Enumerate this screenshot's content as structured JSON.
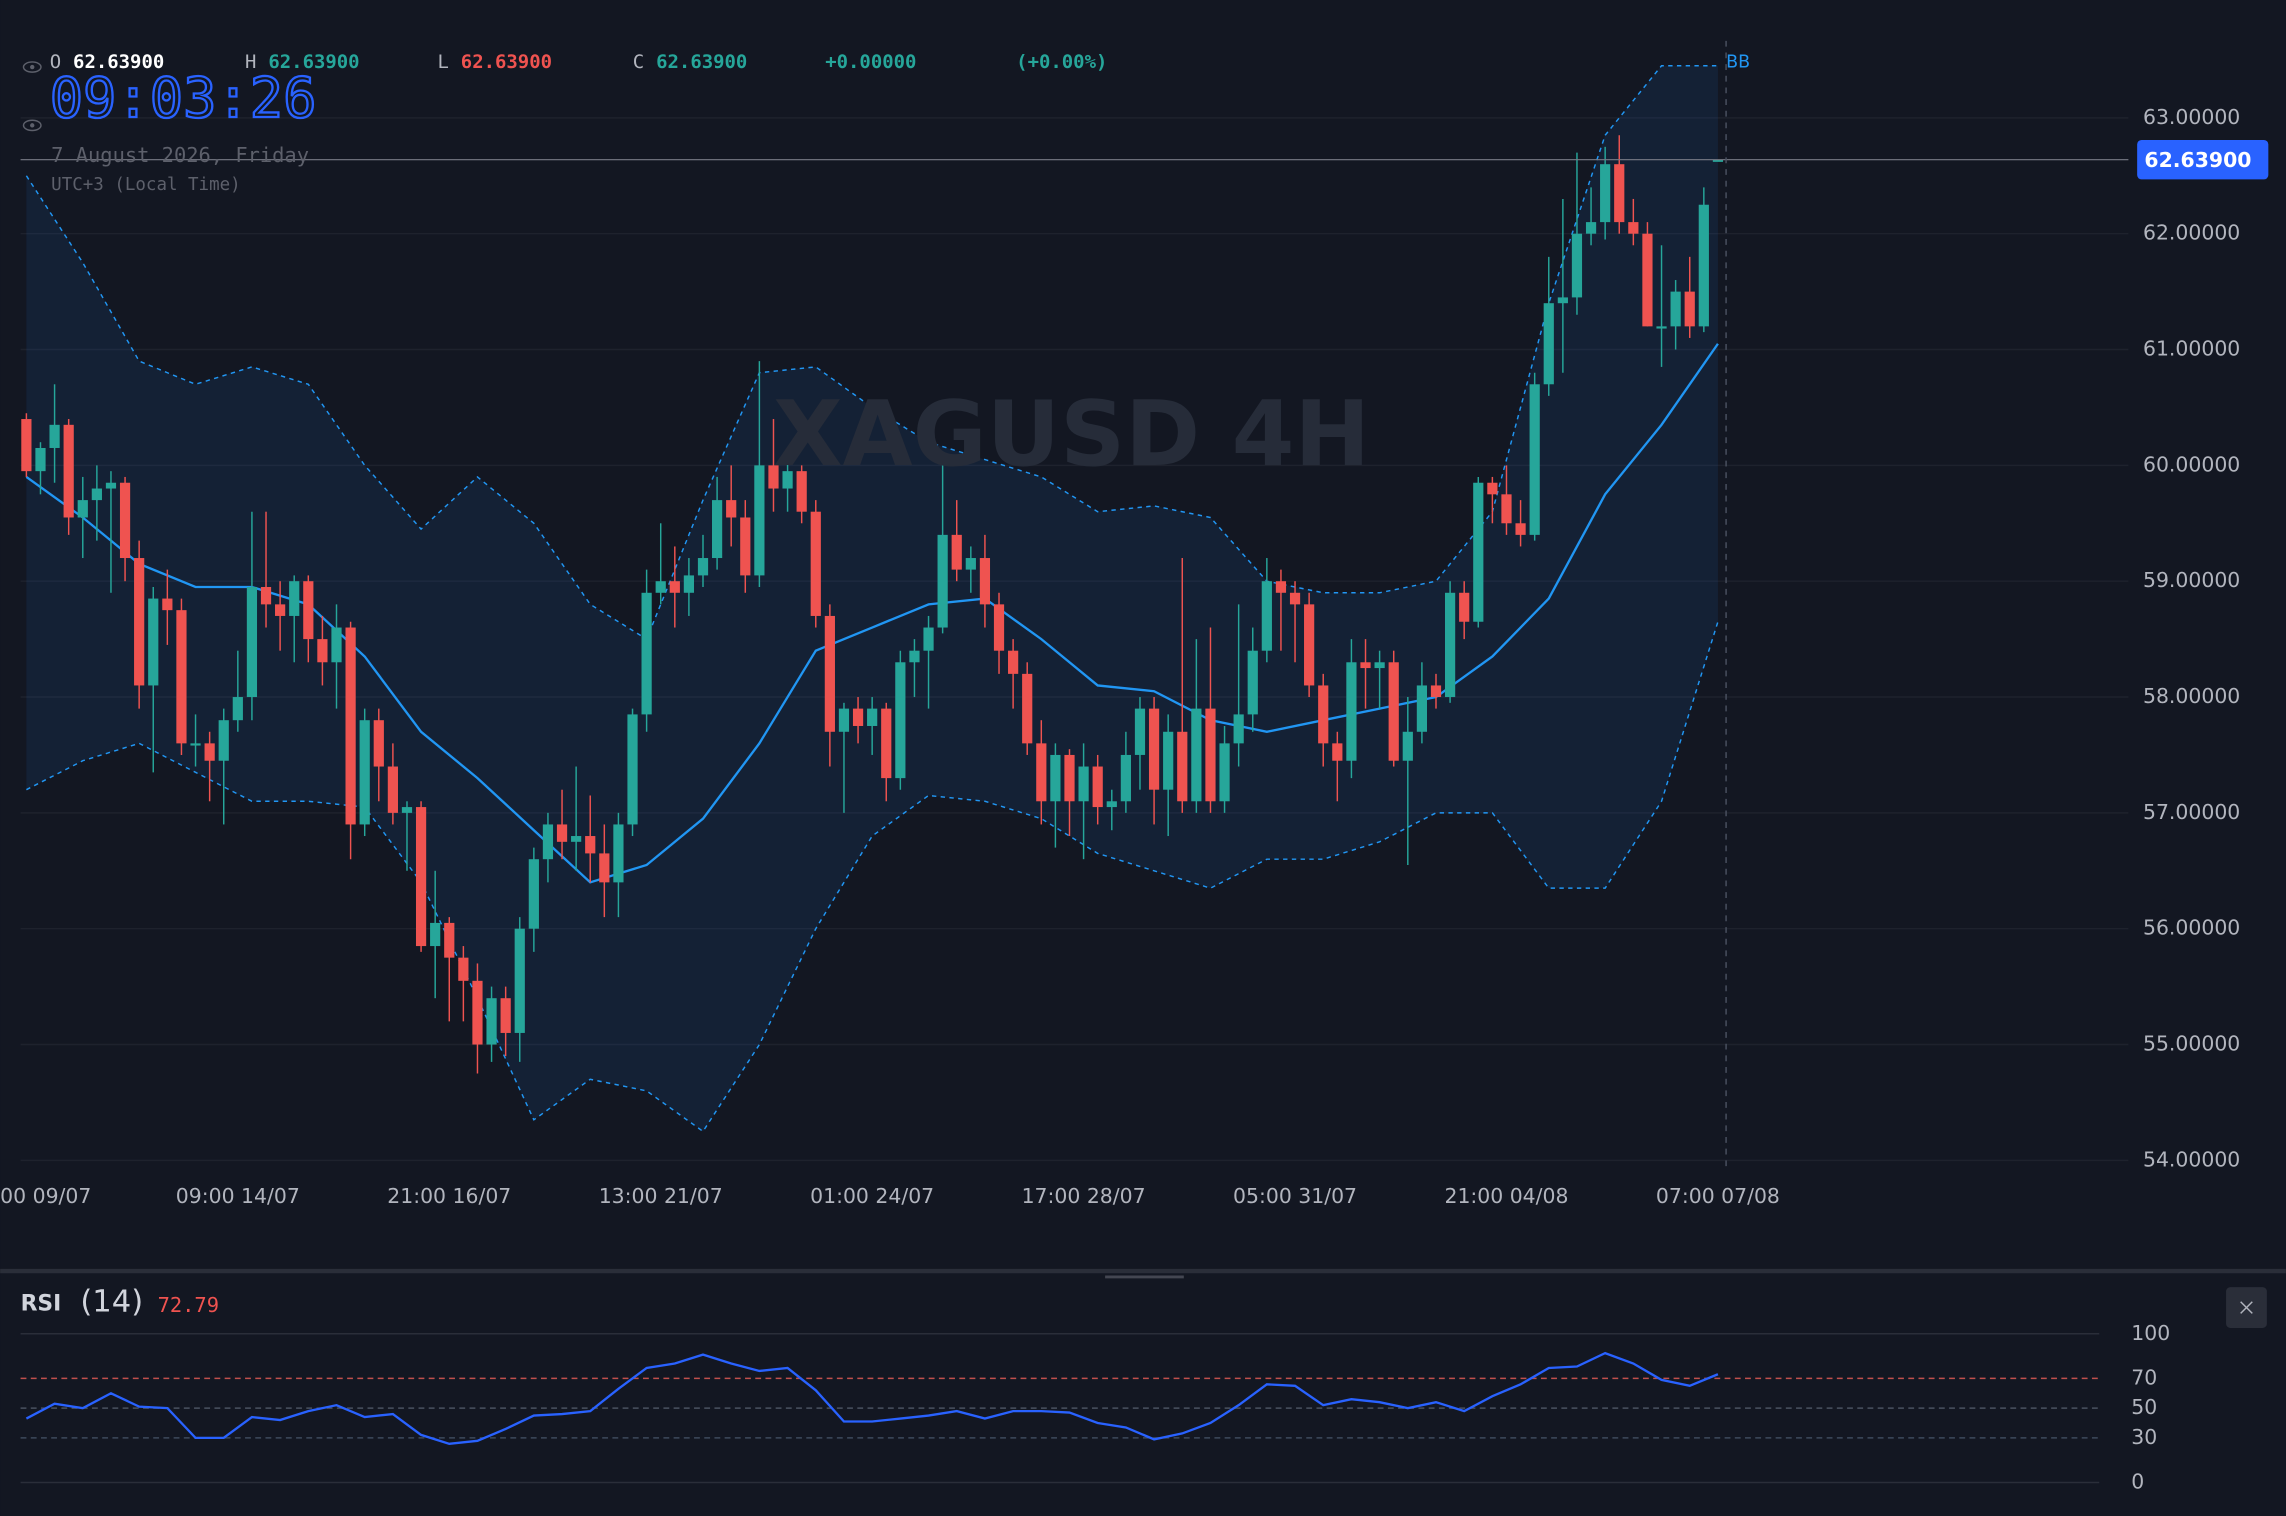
{
  "header": {
    "ohlc": [
      {
        "key": "O",
        "value": "62.63900"
      },
      {
        "key": "H",
        "value": "62.63900"
      },
      {
        "key": "L",
        "value": "62.63900"
      },
      {
        "key": "C",
        "value": "62.63900"
      }
    ],
    "change": "+0.00000",
    "change_pct": "(+0.00%)",
    "clock": "09:03:26",
    "date": "7 August 2026, Friday",
    "timezone": "UTC+3 (Local Time)",
    "watermark": "XAGUSD 4H"
  },
  "chart_data": [
    {
      "type": "candlestick",
      "up_color": "#26a69a",
      "down_color": "#ef5350",
      "grid": true,
      "xlim": [
        -1.86,
        149.12
      ],
      "xticks": [
        {
          "value": 0,
          "label": "00 09/07"
        },
        {
          "value": 15,
          "label": "09:00 14/07"
        },
        {
          "value": 30,
          "label": "21:00 16/07"
        },
        {
          "value": 45,
          "label": "13:00 21/07"
        },
        {
          "value": 60,
          "label": "01:00 24/07"
        },
        {
          "value": 75,
          "label": "17:00 28/07"
        },
        {
          "value": 90,
          "label": "05:00 31/07"
        },
        {
          "value": 105,
          "label": "21:00 04/08"
        },
        {
          "value": 120,
          "label": "07:00 07/08"
        }
      ],
      "ylim": [
        53.95,
        63.64
      ],
      "yticks": [
        {
          "value": 54,
          "label": "54.00000"
        },
        {
          "value": 55,
          "label": "55.00000"
        },
        {
          "value": 56,
          "label": "56.00000"
        },
        {
          "value": 57,
          "label": "57.00000"
        },
        {
          "value": 58,
          "label": "58.00000"
        },
        {
          "value": 59,
          "label": "59.00000"
        },
        {
          "value": 60,
          "label": "60.00000"
        },
        {
          "value": 61,
          "label": "61.00000"
        },
        {
          "value": 62,
          "label": "62.00000"
        },
        {
          "value": 63,
          "label": "63.00000"
        }
      ],
      "last_price": {
        "value": 62.639,
        "label": "62.63900"
      },
      "ohlc": [
        [
          60.4,
          60.45,
          59.9,
          59.95
        ],
        [
          59.95,
          60.2,
          59.75,
          60.15
        ],
        [
          60.15,
          60.7,
          59.85,
          60.35
        ],
        [
          60.35,
          60.4,
          59.4,
          59.55
        ],
        [
          59.55,
          59.9,
          59.2,
          59.7
        ],
        [
          59.7,
          60.0,
          59.35,
          59.8
        ],
        [
          59.8,
          59.95,
          58.9,
          59.85
        ],
        [
          59.85,
          59.9,
          59.0,
          59.2
        ],
        [
          59.2,
          59.35,
          57.9,
          58.1
        ],
        [
          58.1,
          58.95,
          57.35,
          58.85
        ],
        [
          58.85,
          59.1,
          58.45,
          58.75
        ],
        [
          58.75,
          58.85,
          57.5,
          57.6
        ],
        [
          57.6,
          57.85,
          57.4,
          57.6
        ],
        [
          57.6,
          57.7,
          57.1,
          57.45
        ],
        [
          57.45,
          57.9,
          56.9,
          57.8
        ],
        [
          57.8,
          58.4,
          57.7,
          58.0
        ],
        [
          58.0,
          59.6,
          57.8,
          58.95
        ],
        [
          58.95,
          59.6,
          58.6,
          58.8
        ],
        [
          58.8,
          59.0,
          58.4,
          58.7
        ],
        [
          58.7,
          59.05,
          58.3,
          59.0
        ],
        [
          59.0,
          59.05,
          58.3,
          58.5
        ],
        [
          58.5,
          58.7,
          58.1,
          58.3
        ],
        [
          58.3,
          58.8,
          57.9,
          58.6
        ],
        [
          58.6,
          58.65,
          56.6,
          56.9
        ],
        [
          56.9,
          57.9,
          56.8,
          57.8
        ],
        [
          57.8,
          57.9,
          57.1,
          57.4
        ],
        [
          57.4,
          57.6,
          56.9,
          57.0
        ],
        [
          57.0,
          57.1,
          56.5,
          57.05
        ],
        [
          57.05,
          57.1,
          55.8,
          55.85
        ],
        [
          55.85,
          56.5,
          55.4,
          56.05
        ],
        [
          56.05,
          56.1,
          55.2,
          55.75
        ],
        [
          55.75,
          55.85,
          55.2,
          55.55
        ],
        [
          55.55,
          55.7,
          54.75,
          55.0
        ],
        [
          55.0,
          55.5,
          54.85,
          55.4
        ],
        [
          55.4,
          55.5,
          54.9,
          55.1
        ],
        [
          55.1,
          56.1,
          54.85,
          56.0
        ],
        [
          56.0,
          56.7,
          55.8,
          56.6
        ],
        [
          56.6,
          57.0,
          56.4,
          56.9
        ],
        [
          56.9,
          57.2,
          56.6,
          56.75
        ],
        [
          56.75,
          57.4,
          56.5,
          56.8
        ],
        [
          56.8,
          57.15,
          56.4,
          56.65
        ],
        [
          56.65,
          56.9,
          56.1,
          56.4
        ],
        [
          56.4,
          57.0,
          56.1,
          56.9
        ],
        [
          56.9,
          57.9,
          56.8,
          57.85
        ],
        [
          57.85,
          59.1,
          57.7,
          58.9
        ],
        [
          58.9,
          59.5,
          58.8,
          59.0
        ],
        [
          59.0,
          59.3,
          58.6,
          58.9
        ],
        [
          58.9,
          59.2,
          58.7,
          59.05
        ],
        [
          59.05,
          59.4,
          58.95,
          59.2
        ],
        [
          59.2,
          59.9,
          59.1,
          59.7
        ],
        [
          59.7,
          60.0,
          59.3,
          59.55
        ],
        [
          59.55,
          59.7,
          58.9,
          59.05
        ],
        [
          59.05,
          60.9,
          58.95,
          60.0
        ],
        [
          60.0,
          60.4,
          59.6,
          59.8
        ],
        [
          59.8,
          60.1,
          59.6,
          59.95
        ],
        [
          59.95,
          60.0,
          59.5,
          59.6
        ],
        [
          59.6,
          59.7,
          58.6,
          58.7
        ],
        [
          58.7,
          58.8,
          57.4,
          57.7
        ],
        [
          57.7,
          57.95,
          57.0,
          57.9
        ],
        [
          57.9,
          58.0,
          57.6,
          57.75
        ],
        [
          57.75,
          58.0,
          57.5,
          57.9
        ],
        [
          57.9,
          57.95,
          57.1,
          57.3
        ],
        [
          57.3,
          58.4,
          57.2,
          58.3
        ],
        [
          58.3,
          58.5,
          58.0,
          58.4
        ],
        [
          58.4,
          58.7,
          57.9,
          58.6
        ],
        [
          58.6,
          60.1,
          58.55,
          59.4
        ],
        [
          59.4,
          59.7,
          59.0,
          59.1
        ],
        [
          59.1,
          59.3,
          58.9,
          59.2
        ],
        [
          59.2,
          59.4,
          58.6,
          58.8
        ],
        [
          58.8,
          58.9,
          58.2,
          58.4
        ],
        [
          58.4,
          58.5,
          57.9,
          58.2
        ],
        [
          58.2,
          58.3,
          57.5,
          57.6
        ],
        [
          57.6,
          57.8,
          56.9,
          57.1
        ],
        [
          57.1,
          57.6,
          56.7,
          57.5
        ],
        [
          57.5,
          57.55,
          56.8,
          57.1
        ],
        [
          57.1,
          57.6,
          56.6,
          57.4
        ],
        [
          57.4,
          57.5,
          56.9,
          57.05
        ],
        [
          57.05,
          57.2,
          56.85,
          57.1
        ],
        [
          57.1,
          57.7,
          57.0,
          57.5
        ],
        [
          57.5,
          58.0,
          57.2,
          57.9
        ],
        [
          57.9,
          58.0,
          56.9,
          57.2
        ],
        [
          57.2,
          57.85,
          56.8,
          57.7
        ],
        [
          57.7,
          59.2,
          57.0,
          57.1
        ],
        [
          57.1,
          58.5,
          57.0,
          57.9
        ],
        [
          57.9,
          58.6,
          57.0,
          57.1
        ],
        [
          57.1,
          57.75,
          57.0,
          57.6
        ],
        [
          57.6,
          58.8,
          57.4,
          57.85
        ],
        [
          57.85,
          58.6,
          57.7,
          58.4
        ],
        [
          58.4,
          59.2,
          58.3,
          59.0
        ],
        [
          59.0,
          59.1,
          58.4,
          58.9
        ],
        [
          58.9,
          59.0,
          58.3,
          58.8
        ],
        [
          58.8,
          58.9,
          58.0,
          58.1
        ],
        [
          58.1,
          58.2,
          57.4,
          57.6
        ],
        [
          57.6,
          57.7,
          57.1,
          57.45
        ],
        [
          57.45,
          58.5,
          57.3,
          58.3
        ],
        [
          58.3,
          58.5,
          57.9,
          58.25
        ],
        [
          58.25,
          58.4,
          57.9,
          58.3
        ],
        [
          58.3,
          58.4,
          57.4,
          57.45
        ],
        [
          57.45,
          58.0,
          56.55,
          57.7
        ],
        [
          57.7,
          58.3,
          57.6,
          58.1
        ],
        [
          58.1,
          58.2,
          57.9,
          58.0
        ],
        [
          58.0,
          59.0,
          57.95,
          58.9
        ],
        [
          58.9,
          59.0,
          58.5,
          58.65
        ],
        [
          58.65,
          59.9,
          58.6,
          59.85
        ],
        [
          59.85,
          59.9,
          59.5,
          59.75
        ],
        [
          59.75,
          60.0,
          59.4,
          59.5
        ],
        [
          59.5,
          59.7,
          59.3,
          59.4
        ],
        [
          59.4,
          60.8,
          59.35,
          60.7
        ],
        [
          60.7,
          61.8,
          60.6,
          61.4
        ],
        [
          61.4,
          62.3,
          60.8,
          61.45
        ],
        [
          61.45,
          62.7,
          61.3,
          62.0
        ],
        [
          62.0,
          62.4,
          61.9,
          62.1
        ],
        [
          62.1,
          62.75,
          61.95,
          62.6
        ],
        [
          62.6,
          62.85,
          62.0,
          62.1
        ],
        [
          62.1,
          62.3,
          61.9,
          62.0
        ],
        [
          62.0,
          62.1,
          61.2,
          61.2
        ],
        [
          61.2,
          61.9,
          60.85,
          61.2
        ],
        [
          61.2,
          61.6,
          61.0,
          61.5
        ],
        [
          61.5,
          61.8,
          61.1,
          61.2
        ],
        [
          61.2,
          62.4,
          61.15,
          62.25
        ],
        [
          62.639,
          62.639,
          62.639,
          62.639
        ]
      ],
      "indicator": {
        "name": "BB",
        "color": "#2196f3",
        "x": [
          0,
          4,
          8,
          12,
          16,
          20,
          24,
          28,
          32,
          36,
          40,
          44,
          48,
          52,
          56,
          60,
          64,
          68,
          72,
          76,
          80,
          84,
          88,
          92,
          96,
          100,
          104,
          108,
          112,
          116,
          120
        ],
        "upper": [
          62.5,
          61.75,
          60.9,
          60.7,
          60.85,
          60.7,
          60.0,
          59.45,
          59.9,
          59.5,
          58.8,
          58.5,
          59.7,
          60.8,
          60.85,
          60.5,
          60.2,
          60.05,
          59.9,
          59.6,
          59.65,
          59.55,
          59.0,
          58.9,
          58.9,
          59.0,
          59.6,
          61.4,
          62.85,
          63.45,
          63.45
        ],
        "middle": [
          59.9,
          59.55,
          59.15,
          58.95,
          58.95,
          58.8,
          58.35,
          57.7,
          57.3,
          56.85,
          56.4,
          56.55,
          56.95,
          57.6,
          58.4,
          58.6,
          58.8,
          58.85,
          58.5,
          58.1,
          58.05,
          57.8,
          57.7,
          57.8,
          57.9,
          58.0,
          58.35,
          58.85,
          59.75,
          60.35,
          61.05
        ],
        "lower": [
          57.2,
          57.45,
          57.6,
          57.35,
          57.1,
          57.1,
          57.05,
          56.4,
          55.4,
          54.35,
          54.7,
          54.6,
          54.25,
          55.0,
          56.0,
          56.8,
          57.15,
          57.1,
          56.95,
          56.65,
          56.5,
          56.35,
          56.6,
          56.6,
          56.75,
          57.0,
          57.0,
          56.35,
          56.35,
          57.1,
          58.65
        ]
      }
    },
    {
      "type": "line",
      "title": "RSI",
      "period": "(14)",
      "color": "#2962ff",
      "xlim": [
        -1.86,
        149.12
      ],
      "ylim": [
        0,
        100
      ],
      "yticks": [
        0,
        30,
        50,
        70,
        100
      ],
      "tick_styles": [
        "solid",
        "dashed",
        "dashed",
        "dashed",
        "solid"
      ],
      "tick_colors": [
        "#2a2e39",
        "#3d4a5c",
        "#4a5160",
        "#c0504d",
        "#2a2e39"
      ],
      "x": [
        0,
        2,
        4,
        6,
        8,
        10,
        12,
        14,
        16,
        18,
        20,
        22,
        24,
        26,
        28,
        30,
        32,
        34,
        36,
        38,
        40,
        42,
        44,
        46,
        48,
        50,
        52,
        54,
        56,
        58,
        60,
        62,
        64,
        66,
        68,
        70,
        72,
        74,
        76,
        78,
        80,
        82,
        84,
        86,
        88,
        90,
        92,
        94,
        96,
        98,
        100,
        102,
        104,
        106,
        108,
        110,
        112,
        114,
        116,
        118,
        120
      ],
      "values": [
        43,
        53,
        50,
        60,
        51,
        50,
        30,
        30,
        44,
        42,
        48,
        52,
        44,
        46,
        32,
        26,
        28,
        36,
        45,
        46,
        48,
        63,
        77,
        80,
        86,
        80,
        75,
        77,
        62,
        41,
        41,
        43,
        45,
        48,
        43,
        48,
        48,
        47,
        40,
        37,
        29,
        33,
        40,
        52,
        66,
        65,
        52,
        56,
        54,
        50,
        54,
        48,
        58,
        66,
        77,
        78,
        87,
        80,
        69,
        65,
        72.79
      ]
    }
  ]
}
